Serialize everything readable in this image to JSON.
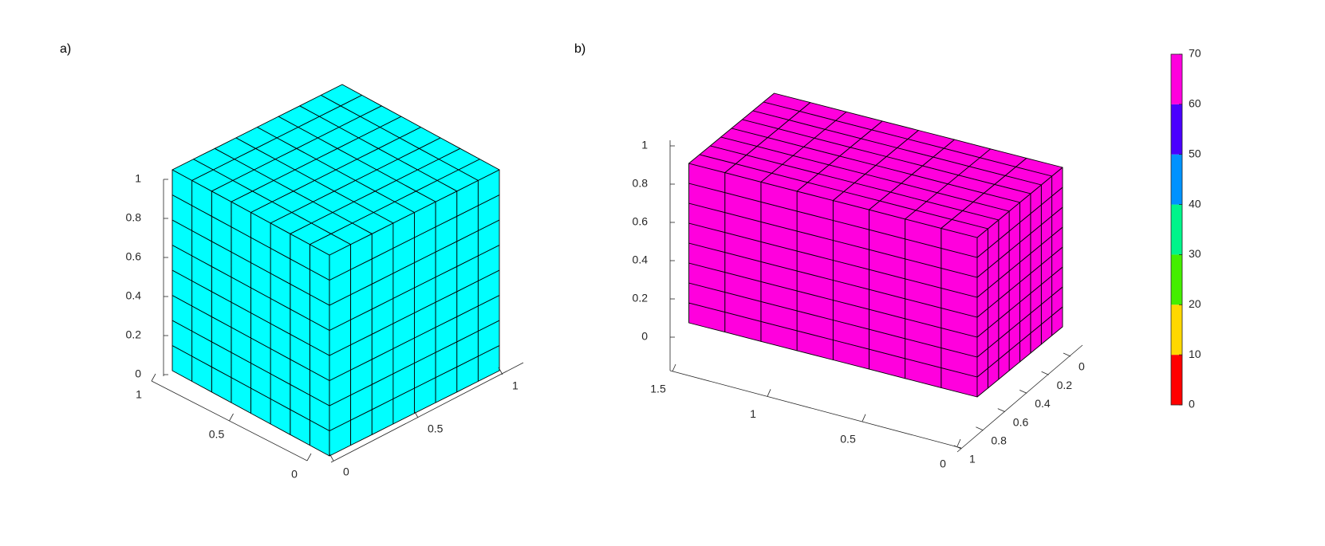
{
  "chart_data": [
    {
      "type": "box3d",
      "label": "a)",
      "color": "#00ffff",
      "size": [
        1,
        1,
        1
      ],
      "divisions": [
        8,
        8,
        8
      ],
      "xlim": [
        0,
        1
      ],
      "xticks": [
        0,
        0.5,
        1
      ],
      "ylim": [
        0,
        1
      ],
      "yticks": [
        0,
        0.5,
        1
      ],
      "zlim": [
        0,
        1
      ],
      "zticks": [
        0,
        0.2,
        0.4,
        0.6,
        0.8,
        1
      ]
    },
    {
      "type": "box3d",
      "label": "b)",
      "color": "#ff00dd",
      "size": [
        1.5,
        1,
        1
      ],
      "divisions": [
        8,
        8,
        8
      ],
      "xlim": [
        0,
        1.5
      ],
      "xticks": [
        0,
        0.5,
        1,
        1.5
      ],
      "ylim": [
        0,
        1
      ],
      "yticks": [
        0,
        0.2,
        0.4,
        0.6,
        0.8,
        1
      ],
      "zlim": [
        0,
        1
      ],
      "zticks": [
        0,
        0.2,
        0.4,
        0.6,
        0.8,
        1
      ],
      "colorbar": {
        "clim": [
          0,
          70
        ],
        "ticks": [
          0,
          10,
          20,
          30,
          40,
          50,
          60,
          70
        ],
        "colors": [
          "#ff0000",
          "#ffd800",
          "#44ee00",
          "#00f58a",
          "#0092ff",
          "#4a00ff",
          "#ff00dd"
        ]
      }
    }
  ]
}
